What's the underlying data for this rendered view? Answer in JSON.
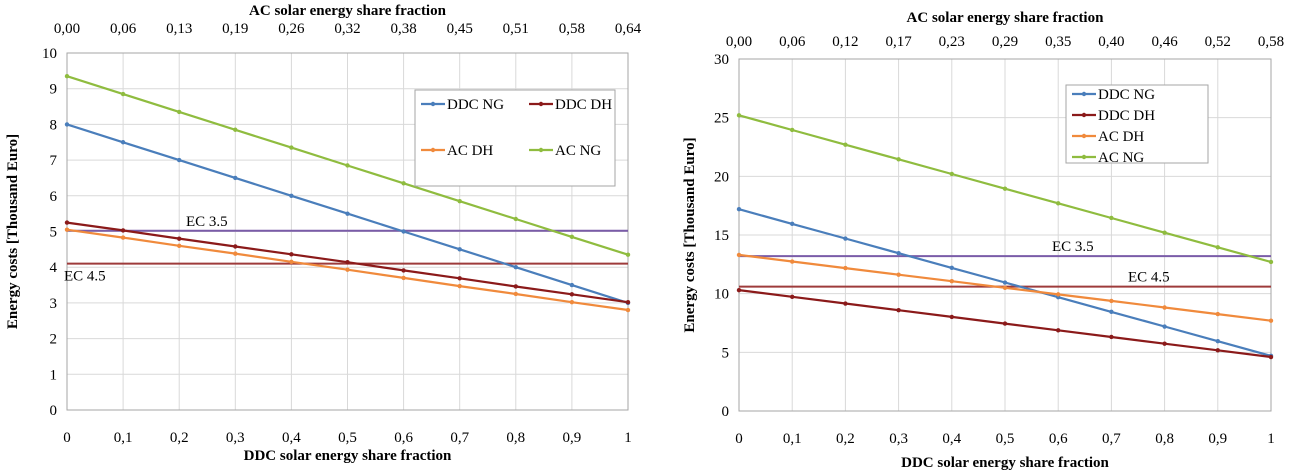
{
  "chart_data": [
    {
      "type": "line",
      "title": "",
      "xlabel": "DDC solar energy share fraction",
      "ylabel": "Energy costs [Thousand Euro]",
      "x2label": "AC solar energy share fraction",
      "x": [
        0,
        0.1,
        0.2,
        0.3,
        0.4,
        0.5,
        0.6,
        0.7,
        0.8,
        0.9,
        1
      ],
      "x_tick_labels": [
        "0",
        "0,1",
        "0,2",
        "0,3",
        "0,4",
        "0,5",
        "0,6",
        "0,7",
        "0,8",
        "0,9",
        "1"
      ],
      "x2_tick_labels": [
        "0,00",
        "0,06",
        "0,13",
        "0,19",
        "0,26",
        "0,32",
        "0,38",
        "0,45",
        "0,51",
        "0,58",
        "0,64"
      ],
      "ylim": [
        0,
        10
      ],
      "y_ticks": [
        0,
        1,
        2,
        3,
        4,
        5,
        6,
        7,
        8,
        9,
        10
      ],
      "grid": true,
      "legend_position": "top-right",
      "series": [
        {
          "name": "DDC NG",
          "color": "#4a7ebb",
          "values": [
            8.0,
            7.5,
            7.0,
            6.5,
            6.0,
            5.5,
            5.0,
            4.5,
            4.0,
            3.5,
            3.0
          ]
        },
        {
          "name": "DDC DH",
          "color": "#8b1a1a",
          "values": [
            5.25,
            5.03,
            4.8,
            4.58,
            4.36,
            4.14,
            3.91,
            3.69,
            3.46,
            3.24,
            3.02
          ]
        },
        {
          "name": "AC DH",
          "color": "#f08a3c",
          "values": [
            5.05,
            4.83,
            4.6,
            4.38,
            4.15,
            3.93,
            3.7,
            3.47,
            3.25,
            3.02,
            2.8
          ]
        },
        {
          "name": "AC NG",
          "color": "#8fbc3f",
          "values": [
            9.35,
            8.85,
            8.35,
            7.85,
            7.35,
            6.85,
            6.35,
            5.85,
            5.35,
            4.85,
            4.35
          ]
        }
      ],
      "reference_lines": [
        {
          "label": "EC 3.5",
          "value": 5.02,
          "color": "#7a5ca8"
        },
        {
          "label": "EC 4.5",
          "value": 4.1,
          "color": "#9e3b3b"
        }
      ]
    },
    {
      "type": "line",
      "title": "",
      "xlabel": "DDC solar energy share fraction",
      "ylabel": "Energy costs [Thousand Euro]",
      "x2label": "AC solar energy share fraction",
      "x": [
        0,
        0.1,
        0.2,
        0.3,
        0.4,
        0.5,
        0.6,
        0.7,
        0.8,
        0.9,
        1
      ],
      "x_tick_labels": [
        "0",
        "0,1",
        "0,2",
        "0,3",
        "0,4",
        "0,5",
        "0,6",
        "0,7",
        "0,8",
        "0,9",
        "1"
      ],
      "x2_tick_labels": [
        "0,00",
        "0,06",
        "0,12",
        "0,17",
        "0,23",
        "0,29",
        "0,35",
        "0,40",
        "0,46",
        "0,52",
        "0,58"
      ],
      "ylim": [
        0,
        30
      ],
      "y_ticks": [
        0,
        5,
        10,
        15,
        20,
        25,
        30
      ],
      "grid": true,
      "legend_position": "top-right",
      "series": [
        {
          "name": "DDC NG",
          "color": "#4a7ebb",
          "values": [
            17.2,
            15.95,
            14.7,
            13.45,
            12.2,
            10.95,
            9.7,
            8.45,
            7.2,
            5.95,
            4.7
          ]
        },
        {
          "name": "DDC DH",
          "color": "#8b1a1a",
          "values": [
            10.3,
            9.73,
            9.16,
            8.59,
            8.02,
            7.45,
            6.88,
            6.31,
            5.74,
            5.17,
            4.6
          ]
        },
        {
          "name": "AC DH",
          "color": "#f08a3c",
          "values": [
            13.3,
            12.74,
            12.18,
            11.62,
            11.06,
            10.5,
            9.94,
            9.38,
            8.82,
            8.26,
            7.7
          ]
        },
        {
          "name": "AC NG",
          "color": "#8fbc3f",
          "values": [
            25.2,
            23.95,
            22.7,
            21.45,
            20.2,
            18.95,
            17.7,
            16.45,
            15.2,
            13.95,
            12.7
          ]
        }
      ],
      "reference_lines": [
        {
          "label": "EC 3.5",
          "value": 13.2,
          "color": "#7a5ca8"
        },
        {
          "label": "EC 4.5",
          "value": 10.6,
          "color": "#9e3b3b"
        }
      ]
    }
  ]
}
